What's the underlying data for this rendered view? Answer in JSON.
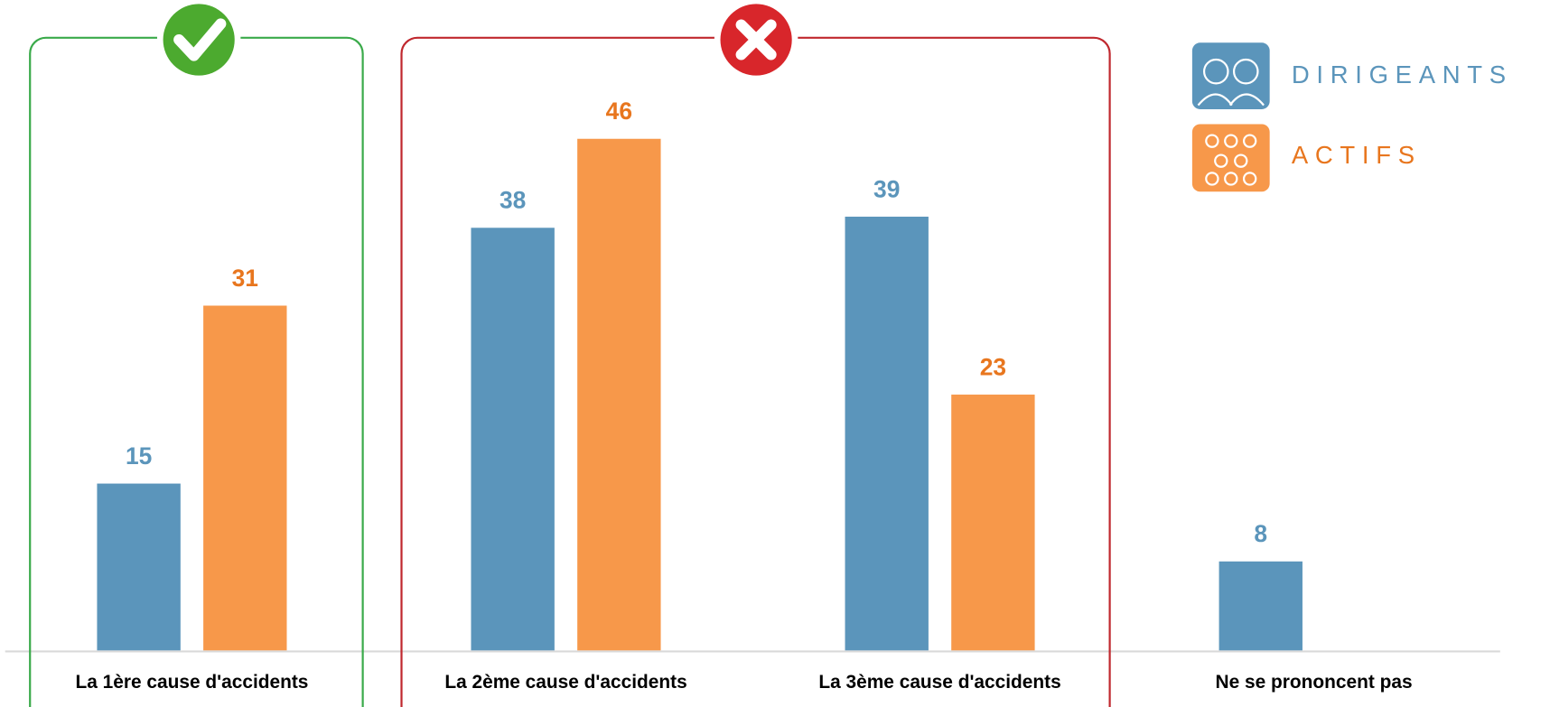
{
  "chart_data": {
    "type": "bar",
    "categories": [
      "La 1ère cause d'accidents",
      "La 2ème cause d'accidents",
      "La 3ème cause d'accidents",
      "Ne se prononcent pas"
    ],
    "series": [
      {
        "name": "DIRIGEANTS",
        "color": "#5b95bb",
        "values": [
          15,
          38,
          39,
          8
        ]
      },
      {
        "name": "ACTIFS",
        "color": "#f7984a",
        "values": [
          31,
          46,
          23,
          null
        ]
      }
    ]
  }
}
